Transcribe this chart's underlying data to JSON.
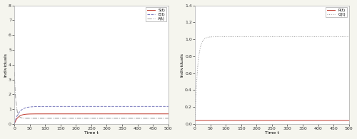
{
  "t_max": 500,
  "left_plot": {
    "S_color": "#c0392b",
    "S_style": "-",
    "S_label": "S(t)",
    "S_final": 0.68,
    "S_rise": 0.09,
    "E_color": "#7777bb",
    "E_style": "--",
    "E_label": "E(t)",
    "E_final": 1.18,
    "E_rise": 0.07,
    "A_color": "#999999",
    "A_style": "-.",
    "A_label": "A(t)",
    "A_init": 3.5,
    "A_final": 0.38,
    "A_decay": 0.2,
    "ylim": [
      0,
      8
    ],
    "yticks": [
      0,
      1,
      2,
      3,
      4,
      5,
      6,
      7,
      8
    ],
    "xlabel": "Time t",
    "ylabel": "Individuals"
  },
  "right_plot": {
    "R_color": "#c0392b",
    "R_style": "-",
    "R_label": "R(t)",
    "R_final": 0.04,
    "Q_color": "#999999",
    "Q_style": ":",
    "Q_label": "Q(t)",
    "Q_final": 1.03,
    "Q_rise": 0.12,
    "ylim": [
      0,
      1.4
    ],
    "yticks": [
      0,
      0.2,
      0.4,
      0.6,
      0.8,
      1.0,
      1.2,
      1.4
    ],
    "xlabel": "Time t",
    "ylabel": "Individuals"
  },
  "bg_color": "#f5f5ee",
  "plot_bg": "#ffffff",
  "xticks": [
    0,
    50,
    100,
    150,
    200,
    250,
    300,
    350,
    400,
    450,
    500
  ]
}
